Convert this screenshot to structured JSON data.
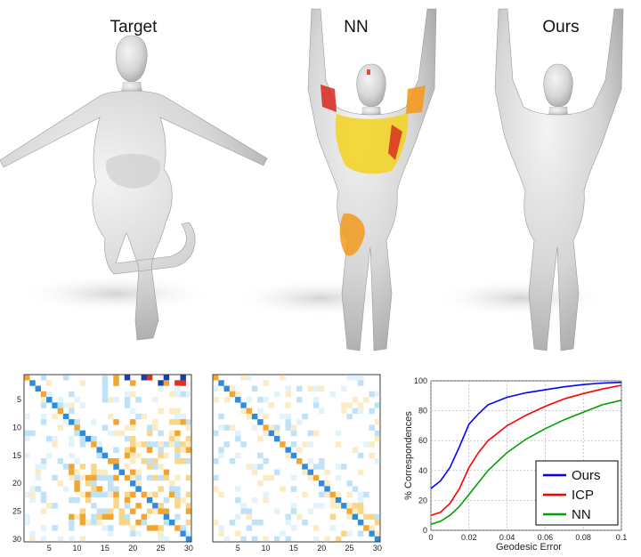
{
  "figures": {
    "target_label": "Target",
    "nn_label": "NN",
    "ours_label": "Ours"
  },
  "colors": {
    "body": "#dcdcdc",
    "heat_yellow": "#f2d21e",
    "heat_orange": "#f29a1e",
    "heat_red": "#d8261c",
    "ours_line": "#0000ff",
    "icp_line": "#ff0000",
    "nn_line": "#00a000"
  },
  "matrices": {
    "left": {
      "ticks": [
        "5",
        "10",
        "15",
        "20",
        "25",
        "30"
      ],
      "xticks": [
        "5",
        "10",
        "15",
        "20",
        "25",
        "30"
      ]
    },
    "right": {
      "xticks": [
        "5",
        "10",
        "15",
        "20",
        "25",
        "30"
      ]
    }
  },
  "chart_data": {
    "type": "line",
    "xlabel": "Geodesic Error",
    "ylabel": "% Correspondences",
    "xlim": [
      0,
      0.1
    ],
    "ylim": [
      0,
      100
    ],
    "xticks": [
      "0",
      "0.02",
      "0.04",
      "0.06",
      "0.08",
      "0.1"
    ],
    "yticks": [
      "0",
      "20",
      "40",
      "60",
      "80",
      "100"
    ],
    "grid": true,
    "legend_position": "bottom-right",
    "x": [
      0,
      0.005,
      0.01,
      0.015,
      0.02,
      0.025,
      0.03,
      0.04,
      0.05,
      0.06,
      0.07,
      0.08,
      0.09,
      0.1
    ],
    "series": [
      {
        "name": "Ours",
        "color": "#0000ff",
        "values": [
          28,
          33,
          42,
          56,
          71,
          78,
          84,
          89,
          92,
          94,
          96,
          97.5,
          98.5,
          99
        ]
      },
      {
        "name": "ICP",
        "color": "#ff0000",
        "values": [
          10,
          12,
          18,
          28,
          42,
          52,
          60,
          70,
          77,
          83,
          88,
          91.5,
          94.5,
          97
        ]
      },
      {
        "name": "NN",
        "color": "#00a000",
        "values": [
          4,
          6,
          10,
          16,
          24,
          32,
          40,
          52,
          61,
          68,
          74,
          79,
          84,
          87
        ]
      }
    ]
  }
}
